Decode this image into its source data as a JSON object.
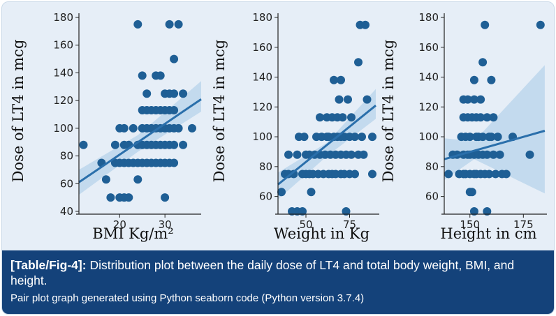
{
  "caption": {
    "label": "[Table/Fig-4]:",
    "text": "Distribution plot between the daily dose of LT4 and total body weight, BMI, and height.",
    "note": "Pair plot graph generated using Python seaborn code (Python version 3.7.4)"
  },
  "colors": {
    "point": "#1f5f95",
    "line": "#2a6fab",
    "band": "#bcd6ec",
    "plot_background": "#e6eef7",
    "caption_background": "#14427a"
  },
  "chart_data": [
    {
      "type": "scatter",
      "title": "",
      "xlabel": "BMI Kg/m²",
      "ylabel": "Dose of LT4 in mcg",
      "xlim": [
        11,
        38
      ],
      "ylim": [
        40,
        180
      ],
      "xticks": [
        20,
        30
      ],
      "yticks": [
        40,
        60,
        80,
        100,
        120,
        140,
        160,
        180
      ],
      "regression": {
        "x": [
          11,
          38
        ],
        "y": [
          61,
          121
        ]
      },
      "confidence_band": {
        "x": [
          11,
          24,
          38
        ],
        "lower": [
          52,
          83,
          112
        ],
        "upper": [
          70,
          95,
          134
        ]
      },
      "points": [
        [
          12,
          88
        ],
        [
          16,
          75
        ],
        [
          17,
          63
        ],
        [
          18,
          50
        ],
        [
          19,
          75
        ],
        [
          19,
          88
        ],
        [
          20,
          50
        ],
        [
          20,
          75
        ],
        [
          20,
          100
        ],
        [
          21,
          50
        ],
        [
          21,
          75
        ],
        [
          21,
          88
        ],
        [
          21,
          100
        ],
        [
          22,
          50
        ],
        [
          22,
          75
        ],
        [
          22,
          88
        ],
        [
          23,
          75
        ],
        [
          23,
          100
        ],
        [
          24,
          63
        ],
        [
          24,
          75
        ],
        [
          24,
          88
        ],
        [
          24,
          175
        ],
        [
          25,
          75
        ],
        [
          25,
          88
        ],
        [
          25,
          100
        ],
        [
          25,
          113
        ],
        [
          25,
          138
        ],
        [
          26,
          75
        ],
        [
          26,
          88
        ],
        [
          26,
          100
        ],
        [
          26,
          113
        ],
        [
          26,
          125
        ],
        [
          27,
          75
        ],
        [
          27,
          88
        ],
        [
          27,
          100
        ],
        [
          27,
          113
        ],
        [
          28,
          75
        ],
        [
          28,
          88
        ],
        [
          28,
          100
        ],
        [
          28,
          113
        ],
        [
          28,
          138
        ],
        [
          29,
          75
        ],
        [
          29,
          88
        ],
        [
          29,
          100
        ],
        [
          29,
          113
        ],
        [
          29,
          138
        ],
        [
          30,
          50
        ],
        [
          30,
          75
        ],
        [
          30,
          88
        ],
        [
          30,
          100
        ],
        [
          30,
          113
        ],
        [
          30,
          125
        ],
        [
          31,
          75
        ],
        [
          31,
          88
        ],
        [
          31,
          100
        ],
        [
          31,
          113
        ],
        [
          31,
          125
        ],
        [
          31,
          175
        ],
        [
          32,
          75
        ],
        [
          32,
          88
        ],
        [
          32,
          100
        ],
        [
          32,
          113
        ],
        [
          32,
          125
        ],
        [
          32,
          150
        ],
        [
          33,
          100
        ],
        [
          33,
          175
        ],
        [
          34,
          88
        ],
        [
          34,
          125
        ],
        [
          36,
          100
        ]
      ]
    },
    {
      "type": "scatter",
      "title": "",
      "xlabel": "Weight in Kg",
      "ylabel": "Dose of LT4 in mcg",
      "xlim": [
        34,
        92
      ],
      "ylim": [
        50,
        180
      ],
      "xticks": [
        50,
        75
      ],
      "yticks": [
        60,
        80,
        100,
        120,
        140,
        160,
        180
      ],
      "regression": {
        "x": [
          34,
          90
        ],
        "y": [
          68,
          121
        ]
      },
      "confidence_band": {
        "x": [
          34,
          62,
          90
        ],
        "lower": [
          58,
          87,
          112
        ],
        "upper": [
          76,
          96,
          132
        ]
      },
      "points": [
        [
          36,
          63
        ],
        [
          38,
          75
        ],
        [
          40,
          75
        ],
        [
          40,
          88
        ],
        [
          42,
          50
        ],
        [
          43,
          75
        ],
        [
          45,
          50
        ],
        [
          45,
          88
        ],
        [
          46,
          100
        ],
        [
          48,
          50
        ],
        [
          48,
          75
        ],
        [
          49,
          100
        ],
        [
          50,
          75
        ],
        [
          50,
          88
        ],
        [
          52,
          75
        ],
        [
          52,
          88
        ],
        [
          53,
          63
        ],
        [
          54,
          75
        ],
        [
          55,
          88
        ],
        [
          56,
          100
        ],
        [
          57,
          75
        ],
        [
          58,
          88
        ],
        [
          58,
          113
        ],
        [
          59,
          100
        ],
        [
          60,
          75
        ],
        [
          61,
          88
        ],
        [
          62,
          100
        ],
        [
          62,
          113
        ],
        [
          63,
          75
        ],
        [
          63,
          100
        ],
        [
          64,
          88
        ],
        [
          65,
          75
        ],
        [
          65,
          113
        ],
        [
          66,
          100
        ],
        [
          66,
          138
        ],
        [
          67,
          75
        ],
        [
          67,
          88
        ],
        [
          68,
          100
        ],
        [
          68,
          113
        ],
        [
          69,
          125
        ],
        [
          70,
          75
        ],
        [
          70,
          88
        ],
        [
          70,
          100
        ],
        [
          70,
          138
        ],
        [
          71,
          113
        ],
        [
          72,
          75
        ],
        [
          72,
          100
        ],
        [
          73,
          50
        ],
        [
          73,
          88
        ],
        [
          74,
          125
        ],
        [
          75,
          75
        ],
        [
          75,
          100
        ],
        [
          76,
          88
        ],
        [
          76,
          113
        ],
        [
          78,
          75
        ],
        [
          78,
          100
        ],
        [
          80,
          88
        ],
        [
          80,
          150
        ],
        [
          81,
          175
        ],
        [
          82,
          100
        ],
        [
          83,
          88
        ],
        [
          84,
          175
        ],
        [
          85,
          125
        ],
        [
          88,
          75
        ],
        [
          88,
          100
        ]
      ]
    },
    {
      "type": "scatter",
      "title": "",
      "xlabel": "Height in cm",
      "ylabel": "Dose of LT4 in mcg",
      "xlim": [
        138,
        186
      ],
      "ylim": [
        50,
        180
      ],
      "xticks": [
        150,
        175
      ],
      "yticks": [
        60,
        80,
        100,
        120,
        140,
        160,
        180
      ],
      "regression": {
        "x": [
          138,
          185
        ],
        "y": [
          85,
          104
        ]
      },
      "confidence_band": {
        "x": [
          138,
          152,
          185
        ],
        "lower": [
          71,
          85,
          62
        ],
        "upper": [
          99,
          97,
          148
        ]
      },
      "points": [
        [
          140,
          75
        ],
        [
          142,
          88
        ],
        [
          144,
          88
        ],
        [
          145,
          75
        ],
        [
          146,
          100
        ],
        [
          147,
          75
        ],
        [
          147,
          88
        ],
        [
          147,
          113
        ],
        [
          147,
          125
        ],
        [
          148,
          75
        ],
        [
          148,
          100
        ],
        [
          149,
          88
        ],
        [
          149,
          113
        ],
        [
          149,
          125
        ],
        [
          150,
          63
        ],
        [
          150,
          75
        ],
        [
          150,
          88
        ],
        [
          150,
          100
        ],
        [
          151,
          63
        ],
        [
          151,
          113
        ],
        [
          152,
          50
        ],
        [
          152,
          75
        ],
        [
          152,
          88
        ],
        [
          152,
          125
        ],
        [
          152,
          138
        ],
        [
          153,
          75
        ],
        [
          153,
          100
        ],
        [
          153,
          113
        ],
        [
          154,
          88
        ],
        [
          154,
          100
        ],
        [
          155,
          75
        ],
        [
          155,
          113
        ],
        [
          155,
          125
        ],
        [
          156,
          88
        ],
        [
          156,
          100
        ],
        [
          156,
          150
        ],
        [
          157,
          75
        ],
        [
          157,
          175
        ],
        [
          158,
          50
        ],
        [
          158,
          88
        ],
        [
          158,
          113
        ],
        [
          159,
          75
        ],
        [
          159,
          100
        ],
        [
          160,
          100
        ],
        [
          160,
          138
        ],
        [
          161,
          88
        ],
        [
          161,
          113
        ],
        [
          162,
          75
        ],
        [
          163,
          100
        ],
        [
          164,
          88
        ],
        [
          165,
          75
        ],
        [
          167,
          75
        ],
        [
          170,
          100
        ],
        [
          178,
          88
        ],
        [
          183,
          175
        ]
      ]
    }
  ]
}
